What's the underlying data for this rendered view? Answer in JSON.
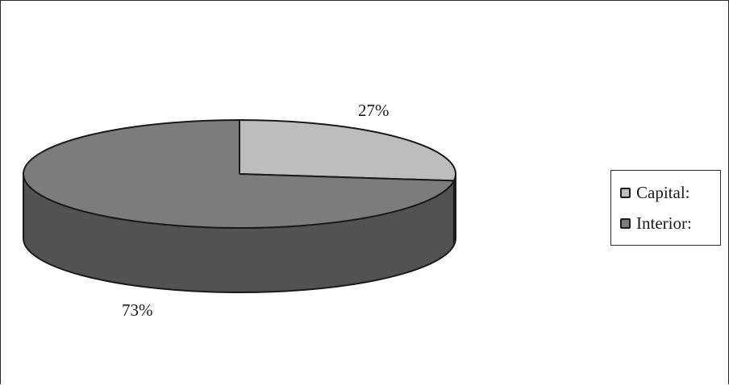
{
  "chart_data": {
    "type": "pie",
    "style": "3d",
    "slices": [
      {
        "label": "Capital:",
        "value": 27,
        "display": "27%",
        "top_color": "#bdbdbd",
        "side_color": "#6e6e6e"
      },
      {
        "label": "Interior:",
        "value": 73,
        "display": "73%",
        "top_color": "#7c7c7c",
        "side_color": "#525252"
      }
    ],
    "legend": {
      "placement": "right"
    },
    "outline_color": "#1a1a1a"
  }
}
